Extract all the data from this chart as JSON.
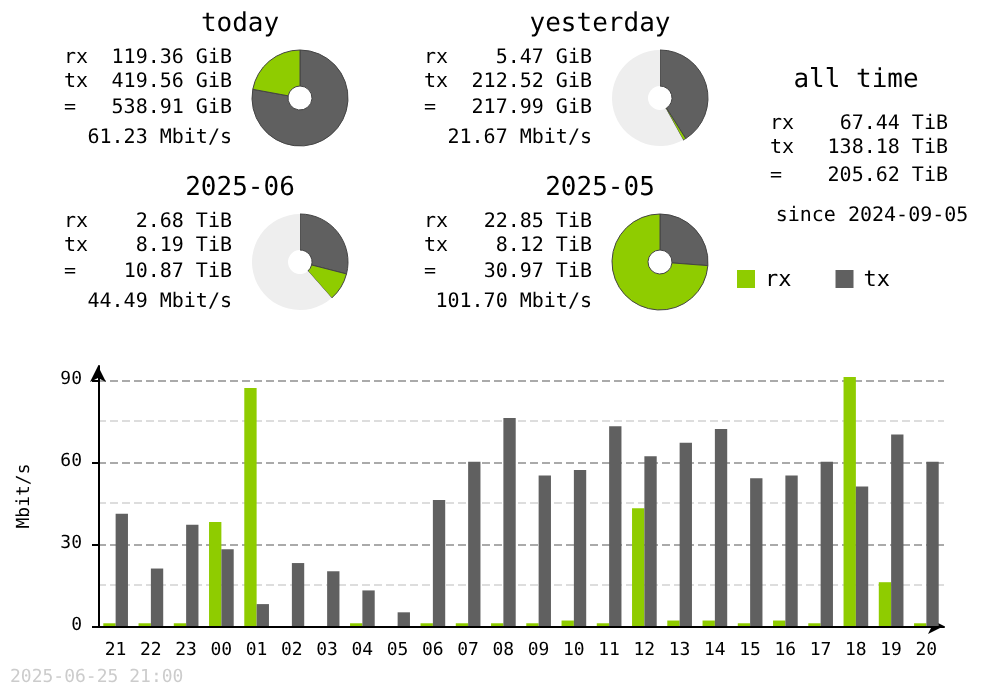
{
  "chart_data": [
    {
      "type": "donut",
      "title": "today",
      "categories": [
        null,
        null,
        null
      ],
      "values": [
        77.9,
        22.1,
        0
      ],
      "colors": [
        "#606060",
        "#8fcc00",
        "#eeeeee"
      ],
      "legend": false,
      "annotations": [
        "rx",
        "119.36 GiB",
        "tx",
        "419.56 GiB",
        "=",
        "538.91 GiB",
        "61.23 Mbit/s"
      ]
    },
    {
      "type": "donut",
      "title": "yesterday",
      "categories": [
        null,
        null,
        null
      ],
      "values": [
        41,
        1,
        58
      ],
      "colors": [
        "#606060",
        "#8fcc00",
        "#eeeeee"
      ],
      "legend": false,
      "annotations": [
        "rx",
        "5.47 GiB",
        "tx",
        "212.52 GiB",
        "=",
        "217.99 GiB",
        "21.67 Mbit/s"
      ]
    },
    {
      "type": "other",
      "title": "all time",
      "annotations": [
        "rx",
        "67.44 TiB",
        "tx",
        "138.18 TiB",
        "=",
        "205.62 TiB",
        "since 2024-09-05"
      ]
    },
    {
      "type": "donut",
      "title": "2025-06",
      "categories": [
        null,
        null,
        null
      ],
      "values": [
        29,
        9.5,
        61.5
      ],
      "colors": [
        "#606060",
        "#8fcc00",
        "#eeeeee"
      ],
      "legend": false,
      "annotations": [
        "rx",
        "2.68 TiB",
        "tx",
        "8.19 TiB",
        "=",
        "10.87 TiB",
        "44.49 Mbit/s"
      ]
    },
    {
      "type": "donut",
      "title": "2025-05",
      "categories": [
        null,
        null,
        null
      ],
      "values": [
        26.2,
        73.8,
        0
      ],
      "colors": [
        "#606060",
        "#8fcc00",
        "#eeeeee"
      ],
      "legend": false,
      "annotations": [
        "rx",
        "22.85 TiB",
        "tx",
        "8.12 TiB",
        "=",
        "30.97 TiB",
        "101.70 Mbit/s"
      ]
    },
    {
      "type": "bar",
      "ylabel": "Mbit/s",
      "categories": [
        "21",
        "22",
        "23",
        "00",
        "01",
        "02",
        "03",
        "04",
        "05",
        "06",
        "07",
        "08",
        "09",
        "10",
        "11",
        "12",
        "13",
        "14",
        "15",
        "16",
        "17",
        "18",
        "19",
        "20"
      ],
      "series": [
        {
          "name": "rx",
          "color": "#8fcc00",
          "values": [
            1,
            1,
            1,
            38,
            87,
            0,
            0,
            1,
            0,
            1,
            1,
            1,
            1,
            2,
            1,
            43,
            2,
            2,
            1,
            2,
            1,
            91,
            16,
            1
          ]
        },
        {
          "name": "tx",
          "color": "#606060",
          "values": [
            41,
            21,
            37,
            28,
            8,
            23,
            20,
            13,
            5,
            46,
            60,
            76,
            55,
            57,
            73,
            62,
            67,
            72,
            54,
            55,
            60,
            51,
            70,
            60
          ]
        }
      ],
      "ylim": [
        0,
        95
      ],
      "yticks": [
        0,
        30,
        60,
        90
      ],
      "grid": "y",
      "legend": "top right",
      "annotations": [
        "2025-06-25 21:00"
      ]
    }
  ]
}
